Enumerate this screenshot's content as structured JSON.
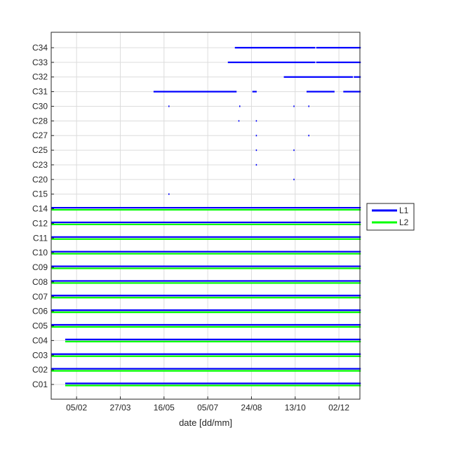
{
  "chart_data": {
    "type": "timeline",
    "xlabel": "date [dd/mm]",
    "ylabel": "",
    "title": "",
    "x_ticks": [
      "05/02",
      "27/03",
      "16/05",
      "05/07",
      "24/08",
      "13/10",
      "02/12"
    ],
    "x_range_days": [
      0,
      353
    ],
    "x_tick_days": [
      29,
      79,
      129,
      179,
      229,
      279,
      329
    ],
    "grid": true,
    "legend_position": "outside-right",
    "legend": [
      {
        "name": "L1",
        "color": "#0000ff"
      },
      {
        "name": "L2",
        "color": "#00ff00"
      }
    ],
    "satellites": [
      {
        "id": "C34",
        "L1": [
          [
            210,
            302
          ],
          [
            303,
            354
          ]
        ],
        "L2": []
      },
      {
        "id": "C33",
        "L1": [
          [
            202,
            302
          ],
          [
            303,
            354
          ]
        ],
        "L2": []
      },
      {
        "id": "C32",
        "L1": [
          [
            266,
            345
          ],
          [
            346,
            354
          ]
        ],
        "L2": []
      },
      {
        "id": "C31",
        "L1": [
          [
            117,
            212
          ],
          [
            230,
            235
          ],
          [
            292,
            324
          ],
          [
            334,
            354
          ]
        ],
        "L2": []
      },
      {
        "id": "C30",
        "L1": [
          [
            134,
            134
          ],
          [
            215,
            216
          ],
          [
            277,
            277
          ],
          [
            294,
            294
          ]
        ],
        "L2": []
      },
      {
        "id": "C28",
        "L1": [
          [
            214,
            214
          ],
          [
            234,
            234
          ]
        ],
        "L2": []
      },
      {
        "id": "C27",
        "L1": [
          [
            234,
            234
          ],
          [
            294,
            294
          ]
        ],
        "L2": []
      },
      {
        "id": "C25",
        "L1": [
          [
            234,
            234
          ],
          [
            277,
            277
          ]
        ],
        "L2": []
      },
      {
        "id": "C23",
        "L1": [
          [
            234,
            234
          ]
        ],
        "L2": []
      },
      {
        "id": "C20",
        "L1": [
          [
            277,
            277
          ]
        ],
        "L2": []
      },
      {
        "id": "C15",
        "L1": [
          [
            134,
            134
          ]
        ],
        "L2": []
      },
      {
        "id": "C14",
        "L1": [
          [
            0,
            354
          ]
        ],
        "L2": [
          [
            0,
            354
          ]
        ]
      },
      {
        "id": "C12",
        "L1": [
          [
            0,
            354
          ]
        ],
        "L2": [
          [
            0,
            354
          ]
        ]
      },
      {
        "id": "C11",
        "L1": [
          [
            0,
            354
          ]
        ],
        "L2": [
          [
            0,
            354
          ]
        ]
      },
      {
        "id": "C10",
        "L1": [
          [
            0,
            354
          ]
        ],
        "L2": [
          [
            0,
            354
          ]
        ]
      },
      {
        "id": "C09",
        "L1": [
          [
            0,
            354
          ]
        ],
        "L2": [
          [
            0,
            354
          ]
        ]
      },
      {
        "id": "C08",
        "L1": [
          [
            0,
            354
          ]
        ],
        "L2": [
          [
            0,
            354
          ]
        ]
      },
      {
        "id": "C07",
        "L1": [
          [
            0,
            354
          ]
        ],
        "L2": [
          [
            0,
            354
          ]
        ]
      },
      {
        "id": "C06",
        "L1": [
          [
            0,
            354
          ]
        ],
        "L2": [
          [
            0,
            354
          ]
        ]
      },
      {
        "id": "C05",
        "L1": [
          [
            0,
            354
          ]
        ],
        "L2": [
          [
            0,
            354
          ]
        ]
      },
      {
        "id": "C04",
        "L1": [
          [
            16,
            354
          ]
        ],
        "L2": [
          [
            16,
            354
          ]
        ]
      },
      {
        "id": "C03",
        "L1": [
          [
            0,
            354
          ]
        ],
        "L2": [
          [
            0,
            354
          ]
        ]
      },
      {
        "id": "C02",
        "L1": [
          [
            0,
            354
          ]
        ],
        "L2": [
          [
            0,
            354
          ]
        ]
      },
      {
        "id": "C01",
        "L1": [
          [
            16,
            354
          ]
        ],
        "L2": [
          [
            16,
            354
          ]
        ]
      }
    ]
  }
}
